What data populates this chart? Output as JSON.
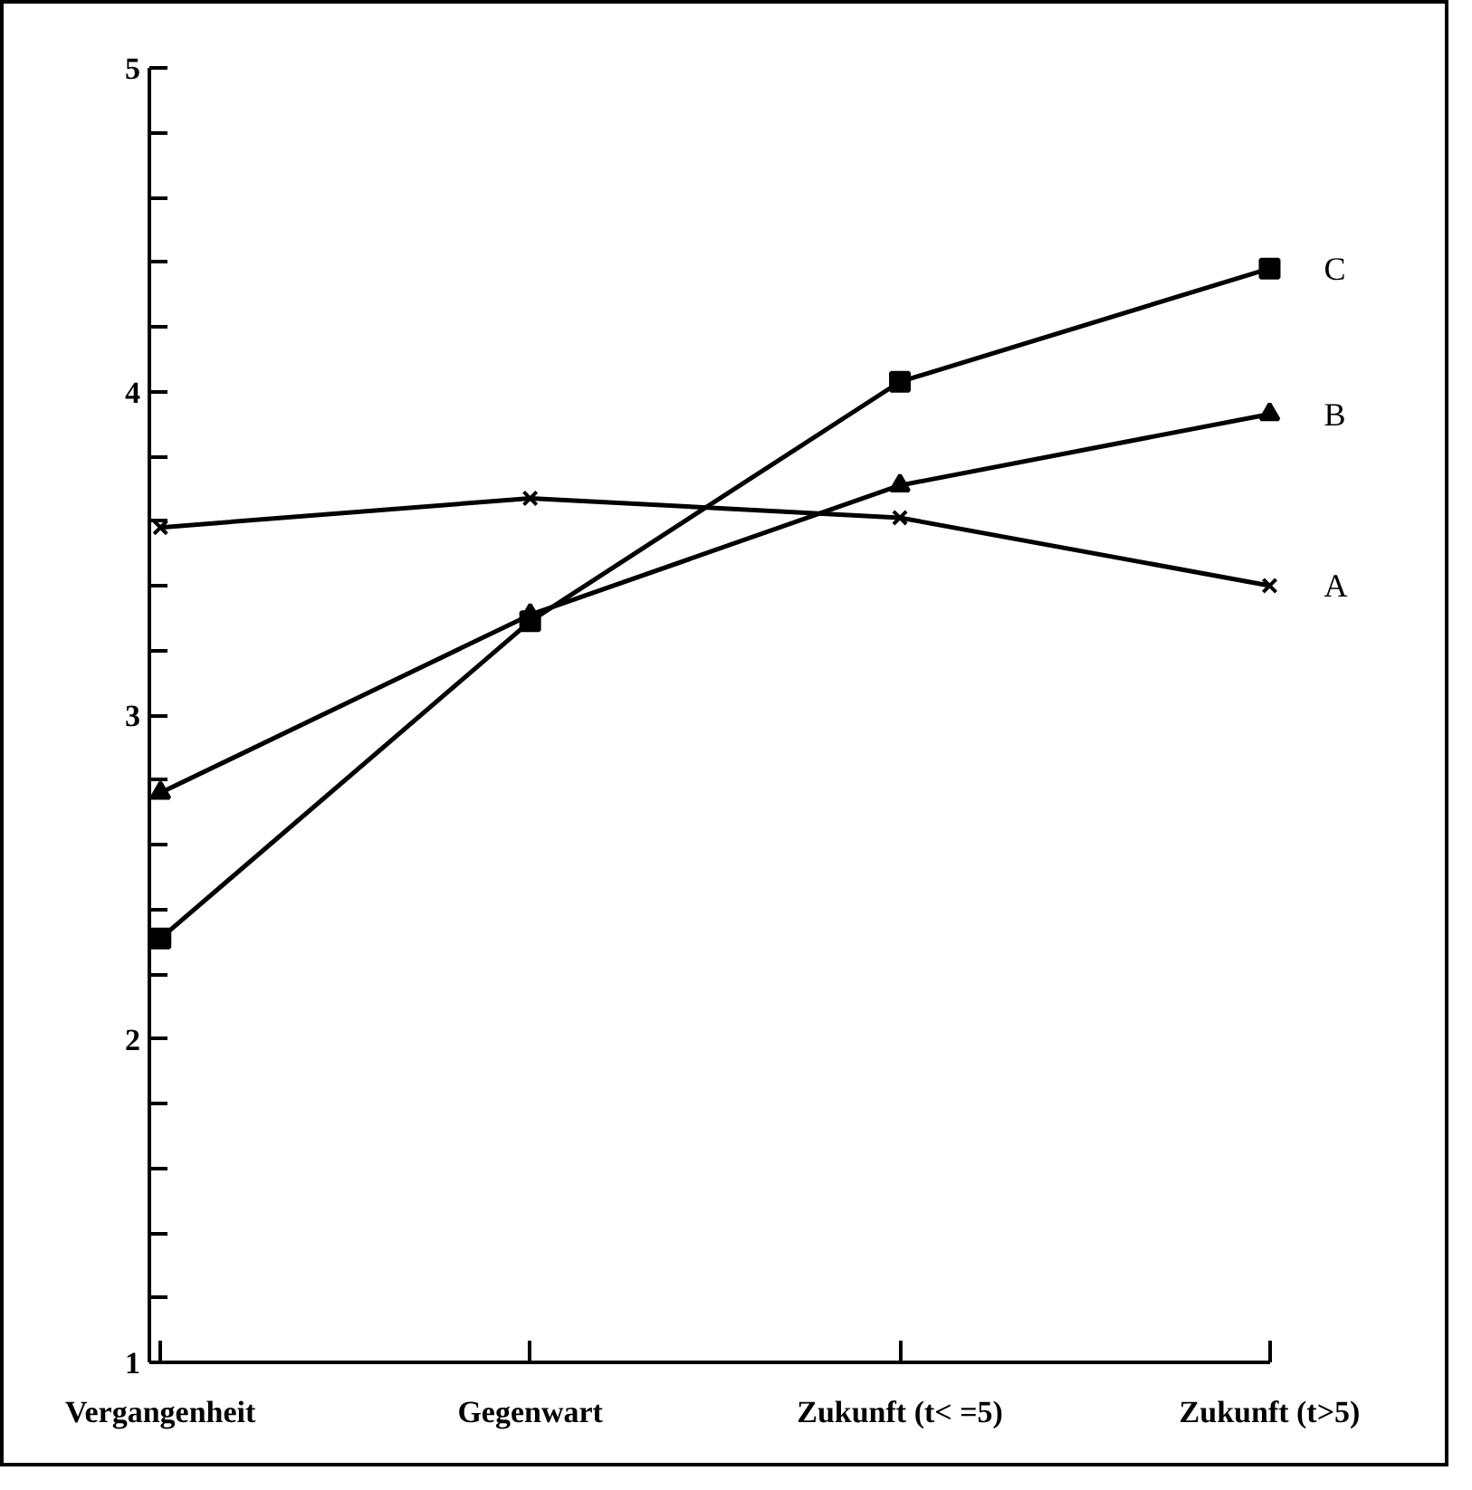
{
  "chart_data": {
    "type": "line",
    "categories": [
      "Vergangenheit",
      "Gegenwart",
      "Zukunft (t< =5)",
      "Zukunft (t>5)"
    ],
    "series": [
      {
        "name": "A",
        "color": "#000000",
        "marker": "cross",
        "values": [
          3.58,
          3.67,
          3.61,
          3.4
        ]
      },
      {
        "name": "B",
        "color": "#000000",
        "marker": "triangle",
        "values": [
          2.76,
          3.31,
          3.71,
          3.93
        ]
      },
      {
        "name": "C",
        "color": "#000000",
        "marker": "square",
        "values": [
          2.31,
          3.29,
          4.03,
          4.38
        ]
      }
    ],
    "ylim": [
      1,
      5
    ],
    "yticks": [
      1,
      {
        "value": 1.2,
        "label": null
      },
      {
        "value": 1.4,
        "label": null
      },
      {
        "value": 1.6,
        "label": null
      },
      {
        "value": 1.8,
        "label": null
      },
      2,
      {
        "value": 2.2,
        "label": null
      },
      {
        "value": 2.4,
        "label": null
      },
      {
        "value": 2.6,
        "label": null
      },
      {
        "value": 2.8,
        "label": null
      },
      3,
      {
        "value": 3.2,
        "label": null
      },
      {
        "value": 3.4,
        "label": null
      },
      {
        "value": 3.6,
        "label": null
      },
      {
        "value": 3.8,
        "label": null
      },
      4,
      {
        "value": 4.2,
        "label": null
      },
      {
        "value": 4.4,
        "label": null
      },
      {
        "value": 4.6,
        "label": null
      },
      {
        "value": 4.8,
        "label": null
      },
      5
    ],
    "grid": false,
    "legend": false,
    "line_style": "solid"
  }
}
